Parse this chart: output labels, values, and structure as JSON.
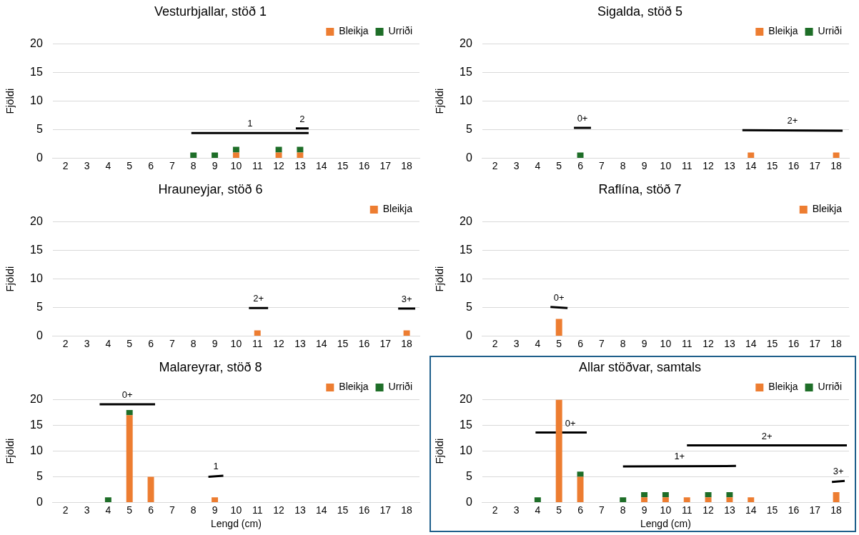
{
  "chart_data": [
    {
      "type": "bar",
      "title": "Vesturbjallar, stöð 1",
      "ylabel": "Fjöldi",
      "x": [
        2,
        3,
        4,
        5,
        6,
        7,
        8,
        9,
        10,
        11,
        12,
        13,
        14,
        15,
        16,
        17,
        18
      ],
      "xlim": [
        1.4,
        18.6
      ],
      "xticks": [
        2,
        3,
        4,
        5,
        6,
        7,
        8,
        9,
        10,
        11,
        12,
        13,
        14,
        15,
        16,
        17,
        18
      ],
      "ylim": [
        0,
        20
      ],
      "yticks": [
        0,
        5,
        10,
        15,
        20
      ],
      "stacked": true,
      "grid": "y",
      "legend": "top right",
      "series": [
        {
          "name": "Bleikja",
          "color": "#ed7d31",
          "values": [
            0,
            0,
            0,
            0,
            0,
            0,
            0,
            0,
            1,
            0,
            1,
            1,
            0,
            0,
            0,
            0,
            0
          ]
        },
        {
          "name": "Urriði",
          "color": "#1e6e28",
          "values": [
            0,
            0,
            0,
            0,
            0,
            0,
            1,
            1,
            1,
            0,
            1,
            1,
            0,
            0,
            0,
            0,
            0
          ]
        },
        {
          "name": "1",
          "type": "line",
          "color": "#000000",
          "x": [
            7.9,
            13.4
          ],
          "values": [
            4.4,
            4.4
          ]
        },
        {
          "name": "2",
          "type": "line",
          "color": "#000000",
          "x": [
            12.8,
            13.4
          ],
          "values": [
            5.2,
            5.2
          ]
        }
      ]
    },
    {
      "type": "bar",
      "title": "Sigalda, stöð 5",
      "ylabel": "Fjöldi",
      "x": [
        2,
        3,
        4,
        5,
        6,
        7,
        8,
        9,
        10,
        11,
        12,
        13,
        14,
        15,
        16,
        17,
        18
      ],
      "xlim": [
        1.4,
        18.6
      ],
      "xticks": [
        2,
        3,
        4,
        5,
        6,
        7,
        8,
        9,
        10,
        11,
        12,
        13,
        14,
        15,
        16,
        17,
        18
      ],
      "ylim": [
        0,
        20
      ],
      "yticks": [
        0,
        5,
        10,
        15,
        20
      ],
      "stacked": true,
      "grid": "y",
      "legend": "top right",
      "series": [
        {
          "name": "Bleikja",
          "color": "#ed7d31",
          "values": [
            0,
            0,
            0,
            0,
            0,
            0,
            0,
            0,
            0,
            0,
            0,
            0,
            1,
            0,
            0,
            0,
            1
          ]
        },
        {
          "name": "Urriði",
          "color": "#1e6e28",
          "values": [
            0,
            0,
            0,
            0,
            1,
            0,
            0,
            0,
            0,
            0,
            0,
            0,
            0,
            0,
            0,
            0,
            0
          ]
        },
        {
          "name": "0+",
          "type": "line",
          "color": "#000000",
          "x": [
            5.7,
            6.5
          ],
          "values": [
            5.3,
            5.3
          ]
        },
        {
          "name": "2+",
          "type": "line",
          "color": "#000000",
          "x": [
            13.6,
            18.3
          ],
          "values": [
            4.9,
            4.8
          ]
        }
      ]
    },
    {
      "type": "bar",
      "title": "Hrauneyjar, stöð 6",
      "ylabel": "Fjöldi",
      "x": [
        2,
        3,
        4,
        5,
        6,
        7,
        8,
        9,
        10,
        11,
        12,
        13,
        14,
        15,
        16,
        17,
        18
      ],
      "xlim": [
        1.4,
        18.6
      ],
      "xticks": [
        2,
        3,
        4,
        5,
        6,
        7,
        8,
        9,
        10,
        11,
        12,
        13,
        14,
        15,
        16,
        17,
        18
      ],
      "ylim": [
        0,
        20
      ],
      "yticks": [
        0,
        5,
        10,
        15,
        20
      ],
      "stacked": true,
      "grid": "y",
      "legend": "top right",
      "series": [
        {
          "name": "Bleikja",
          "color": "#ed7d31",
          "values": [
            0,
            0,
            0,
            0,
            0,
            0,
            0,
            0,
            0,
            1,
            0,
            0,
            0,
            0,
            0,
            0,
            1
          ]
        },
        {
          "name": "2+",
          "type": "line",
          "color": "#000000",
          "x": [
            10.6,
            11.5
          ],
          "values": [
            4.9,
            4.9
          ]
        },
        {
          "name": "3+",
          "type": "line",
          "color": "#000000",
          "x": [
            17.6,
            18.4
          ],
          "values": [
            4.8,
            4.8
          ]
        }
      ]
    },
    {
      "type": "bar",
      "title": "Raflína, stöð 7",
      "ylabel": "Fjöldi",
      "x": [
        2,
        3,
        4,
        5,
        6,
        7,
        8,
        9,
        10,
        11,
        12,
        13,
        14,
        15,
        16,
        17,
        18
      ],
      "xlim": [
        1.4,
        18.6
      ],
      "xticks": [
        2,
        3,
        4,
        5,
        6,
        7,
        8,
        9,
        10,
        11,
        12,
        13,
        14,
        15,
        16,
        17,
        18
      ],
      "ylim": [
        0,
        20
      ],
      "yticks": [
        0,
        5,
        10,
        15,
        20
      ],
      "stacked": true,
      "grid": "y",
      "legend": "top right",
      "series": [
        {
          "name": "Bleikja",
          "color": "#ed7d31",
          "values": [
            0,
            0,
            0,
            3,
            0,
            0,
            0,
            0,
            0,
            0,
            0,
            0,
            0,
            0,
            0,
            0,
            0
          ]
        },
        {
          "name": "0+",
          "type": "line",
          "color": "#000000",
          "x": [
            4.6,
            5.4
          ],
          "values": [
            5.1,
            4.9
          ]
        }
      ]
    },
    {
      "type": "bar",
      "title": "Malareyrar, stöð 8",
      "ylabel": "Fjöldi",
      "xlabel": "Lengd (cm)",
      "x": [
        2,
        3,
        4,
        5,
        6,
        7,
        8,
        9,
        10,
        11,
        12,
        13,
        14,
        15,
        16,
        17,
        18
      ],
      "xlim": [
        1.4,
        18.6
      ],
      "xticks": [
        2,
        3,
        4,
        5,
        6,
        7,
        8,
        9,
        10,
        11,
        12,
        13,
        14,
        15,
        16,
        17,
        18
      ],
      "ylim": [
        0,
        20
      ],
      "yticks": [
        0,
        5,
        10,
        15,
        20
      ],
      "stacked": true,
      "grid": "y",
      "legend": "top right",
      "series": [
        {
          "name": "Bleikja",
          "color": "#ed7d31",
          "values": [
            0,
            0,
            0,
            17,
            5,
            0,
            0,
            1,
            0,
            0,
            0,
            0,
            0,
            0,
            0,
            0,
            0
          ]
        },
        {
          "name": "Urriði",
          "color": "#1e6e28",
          "values": [
            0,
            0,
            1,
            1,
            0,
            0,
            0,
            0,
            0,
            0,
            0,
            0,
            0,
            0,
            0,
            0,
            0
          ]
        },
        {
          "name": "0+",
          "type": "line",
          "color": "#000000",
          "x": [
            3.6,
            6.2
          ],
          "values": [
            19.1,
            19.1
          ]
        },
        {
          "name": "1",
          "type": "line",
          "color": "#000000",
          "x": [
            8.7,
            9.4
          ],
          "values": [
            5.0,
            5.2
          ]
        }
      ]
    },
    {
      "type": "bar",
      "title": "Allar stöðvar, samtals",
      "ylabel": "Fjöldi",
      "xlabel": "Lengd (cm)",
      "x": [
        2,
        3,
        4,
        5,
        6,
        7,
        8,
        9,
        10,
        11,
        12,
        13,
        14,
        15,
        16,
        17,
        18
      ],
      "xlim": [
        1.4,
        18.6
      ],
      "xticks": [
        2,
        3,
        4,
        5,
        6,
        7,
        8,
        9,
        10,
        11,
        12,
        13,
        14,
        15,
        16,
        17,
        18
      ],
      "ylim": [
        0,
        20
      ],
      "yticks": [
        0,
        5,
        10,
        15,
        20
      ],
      "stacked": true,
      "grid": "y",
      "legend": "top right",
      "series": [
        {
          "name": "Bleikja",
          "color": "#ed7d31",
          "values": [
            0,
            0,
            0,
            20,
            5,
            0,
            0,
            1,
            1,
            1,
            1,
            1,
            1,
            0,
            0,
            0,
            2
          ]
        },
        {
          "name": "Urriði",
          "color": "#1e6e28",
          "values": [
            0,
            0,
            1,
            null,
            1,
            0,
            1,
            1,
            1,
            0,
            1,
            1,
            0,
            0,
            0,
            0,
            0
          ]
        },
        {
          "name": "0+",
          "type": "line",
          "color": "#000000",
          "x": [
            3.9,
            6.3
          ],
          "values": [
            13.6,
            13.6
          ]
        },
        {
          "name": "1+",
          "type": "line",
          "color": "#000000",
          "x": [
            8.0,
            13.3
          ],
          "values": [
            7.0,
            7.1
          ]
        },
        {
          "name": "2+",
          "type": "line",
          "color": "#000000",
          "x": [
            11.0,
            18.5
          ],
          "values": [
            11.1,
            11.1
          ]
        },
        {
          "name": "3+",
          "type": "line",
          "color": "#000000",
          "x": [
            17.8,
            18.4
          ],
          "values": [
            4.0,
            4.2
          ]
        }
      ]
    }
  ]
}
